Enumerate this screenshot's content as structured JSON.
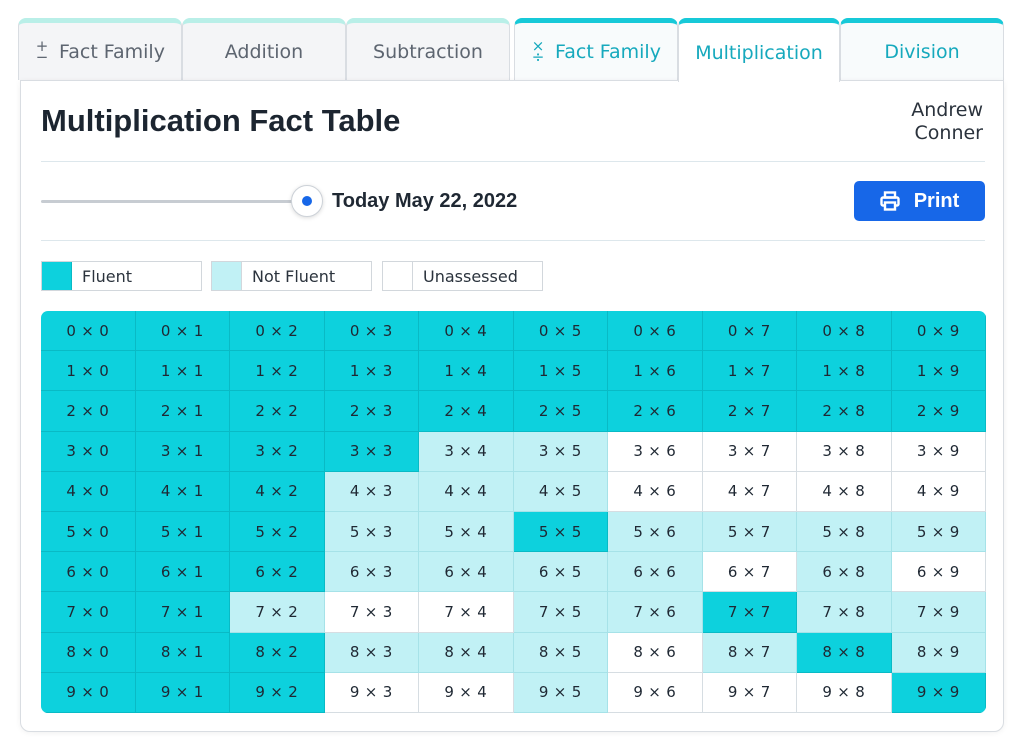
{
  "tabs": [
    {
      "label": "Fact Family",
      "icon": "plus-minus-icon",
      "group": "a",
      "active": false
    },
    {
      "label": "Addition",
      "icon": "",
      "group": "a",
      "active": false
    },
    {
      "label": "Subtraction",
      "icon": "",
      "group": "a",
      "active": false
    },
    {
      "label": "Fact Family",
      "icon": "times-divide-icon",
      "group": "b",
      "active": false
    },
    {
      "label": "Multiplication",
      "icon": "",
      "group": "b",
      "active": true
    },
    {
      "label": "Division",
      "icon": "",
      "group": "b",
      "active": false
    }
  ],
  "header": {
    "title": "Multiplication Fact Table",
    "student_first": "Andrew",
    "student_last": "Conner"
  },
  "timeline": {
    "date_label": "Today May 22, 2022"
  },
  "print": {
    "label": "Print",
    "icon": "printer-icon"
  },
  "legend": [
    {
      "key": "f",
      "label": "Fluent",
      "color": "#0dd1dd"
    },
    {
      "key": "n",
      "label": "Not Fluent",
      "color": "#c1f1f5"
    },
    {
      "key": "u",
      "label": "Unassessed",
      "color": "#ffffff"
    }
  ],
  "colors": {
    "accent": "#16a9bd",
    "primary_button": "#1767e8",
    "fluent": "#0dd1dd",
    "not_fluent": "#c1f1f5",
    "unassessed": "#ffffff"
  },
  "fact_table": {
    "operator": "×",
    "status_rows": [
      "ffffffffff",
      "ffffffffff",
      "ffffffffff",
      "ffffnnuuuu",
      "fffnnnuuuu",
      "fffnnfnnnn",
      "fffnnnnunu",
      "ffnuunnfnn",
      "fffnnnunfn",
      "fffuunuuuf"
    ]
  }
}
